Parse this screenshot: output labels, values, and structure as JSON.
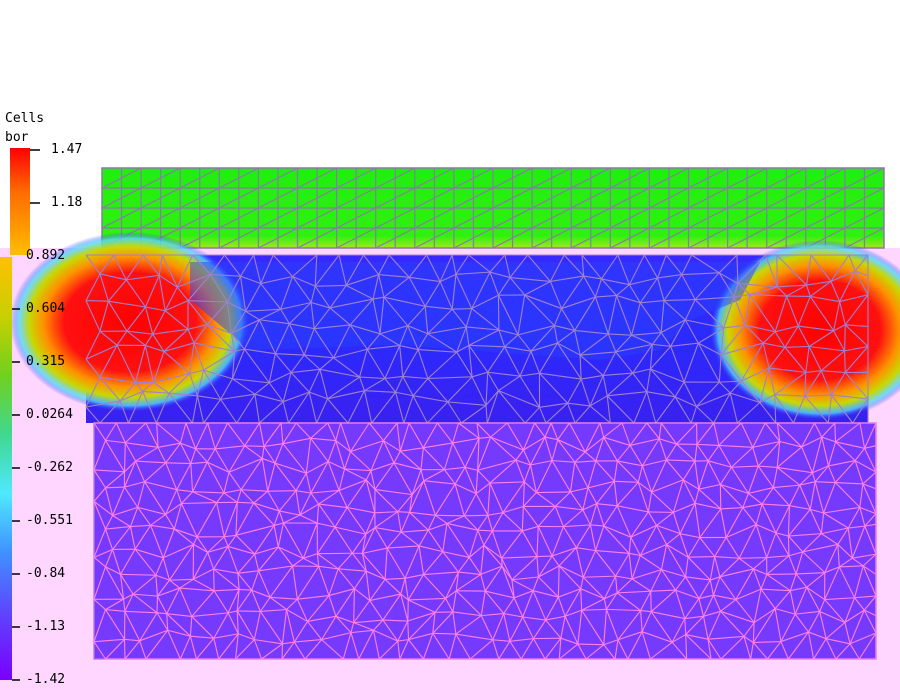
{
  "colorbar": {
    "title_line1": "Cells",
    "title_line2": "bor",
    "upper_ticks": [
      "1.47",
      "1.18",
      "0.892"
    ],
    "lower_ticks": [
      "0.604",
      "0.315",
      "0.0264",
      "-0.262",
      "-0.551",
      "-0.84",
      "-1.13",
      "-1.42"
    ],
    "upper_gradient": [
      "#ff0000",
      "#ff6a00",
      "#ffa000",
      "#ffc000"
    ],
    "lower_gradient": [
      "#ffc000",
      "#c8d000",
      "#70d020",
      "#40d890",
      "#50e8ff",
      "#4090ff",
      "#6040ff",
      "#7a00ff"
    ]
  },
  "colors": {
    "overlay_pink": "#ffd6ff",
    "mesh_edge": "#9a7ac8",
    "mesh_edge_lower": "#ff80e0",
    "top_block": "#20ee10",
    "middle_blue": "#3020ff",
    "middle_red": "#ff1010",
    "lower_violet": "#7a38ff"
  }
}
